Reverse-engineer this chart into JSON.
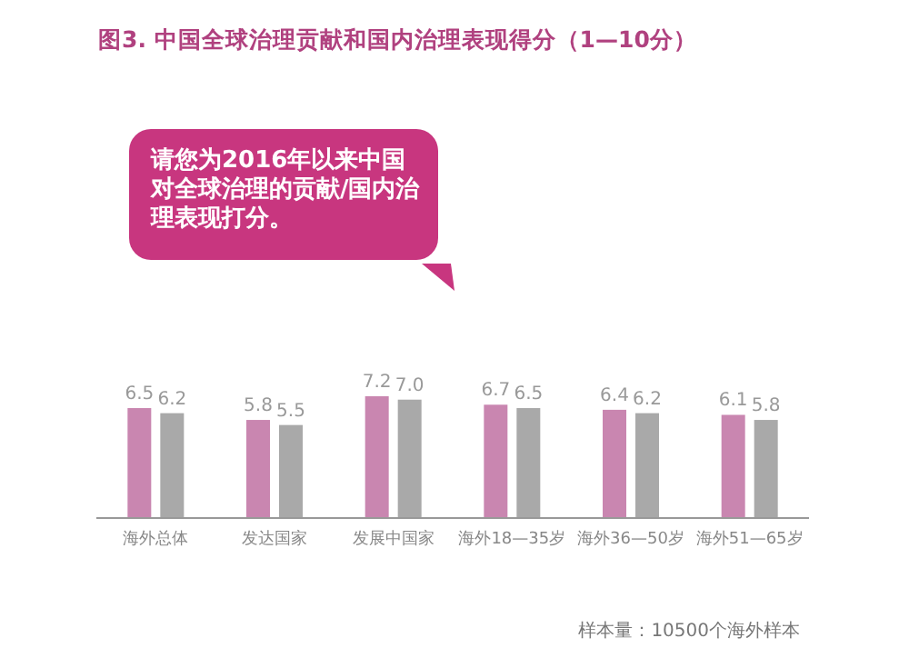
{
  "chart_data": {
    "type": "bar",
    "title": "图3. 中国全球治理贡献和国内治理表现得分（1—10分）",
    "categories": [
      "海外总体",
      "发达国家",
      "发展中国家",
      "海外18—35岁",
      "海外36—50岁",
      "海外51—65岁"
    ],
    "series": [
      {
        "color": "#c986b0",
        "values": [
          6.5,
          5.8,
          7.2,
          6.7,
          6.4,
          6.1
        ],
        "value_labels": [
          "6.5",
          "5.8",
          "7.2",
          "6.7",
          "6.4",
          "6.1"
        ]
      },
      {
        "color": "#a9a9a9",
        "values": [
          6.2,
          5.5,
          7.0,
          6.5,
          6.2,
          5.8
        ],
        "value_labels": [
          "6.2",
          "5.5",
          "7.0",
          "6.5",
          "6.2",
          "5.8"
        ]
      }
    ],
    "annotations": [
      "请您为2016年以来中国对全球治理的贡献/国内治理表现打分。",
      "样本量：10500个海外样本"
    ]
  }
}
